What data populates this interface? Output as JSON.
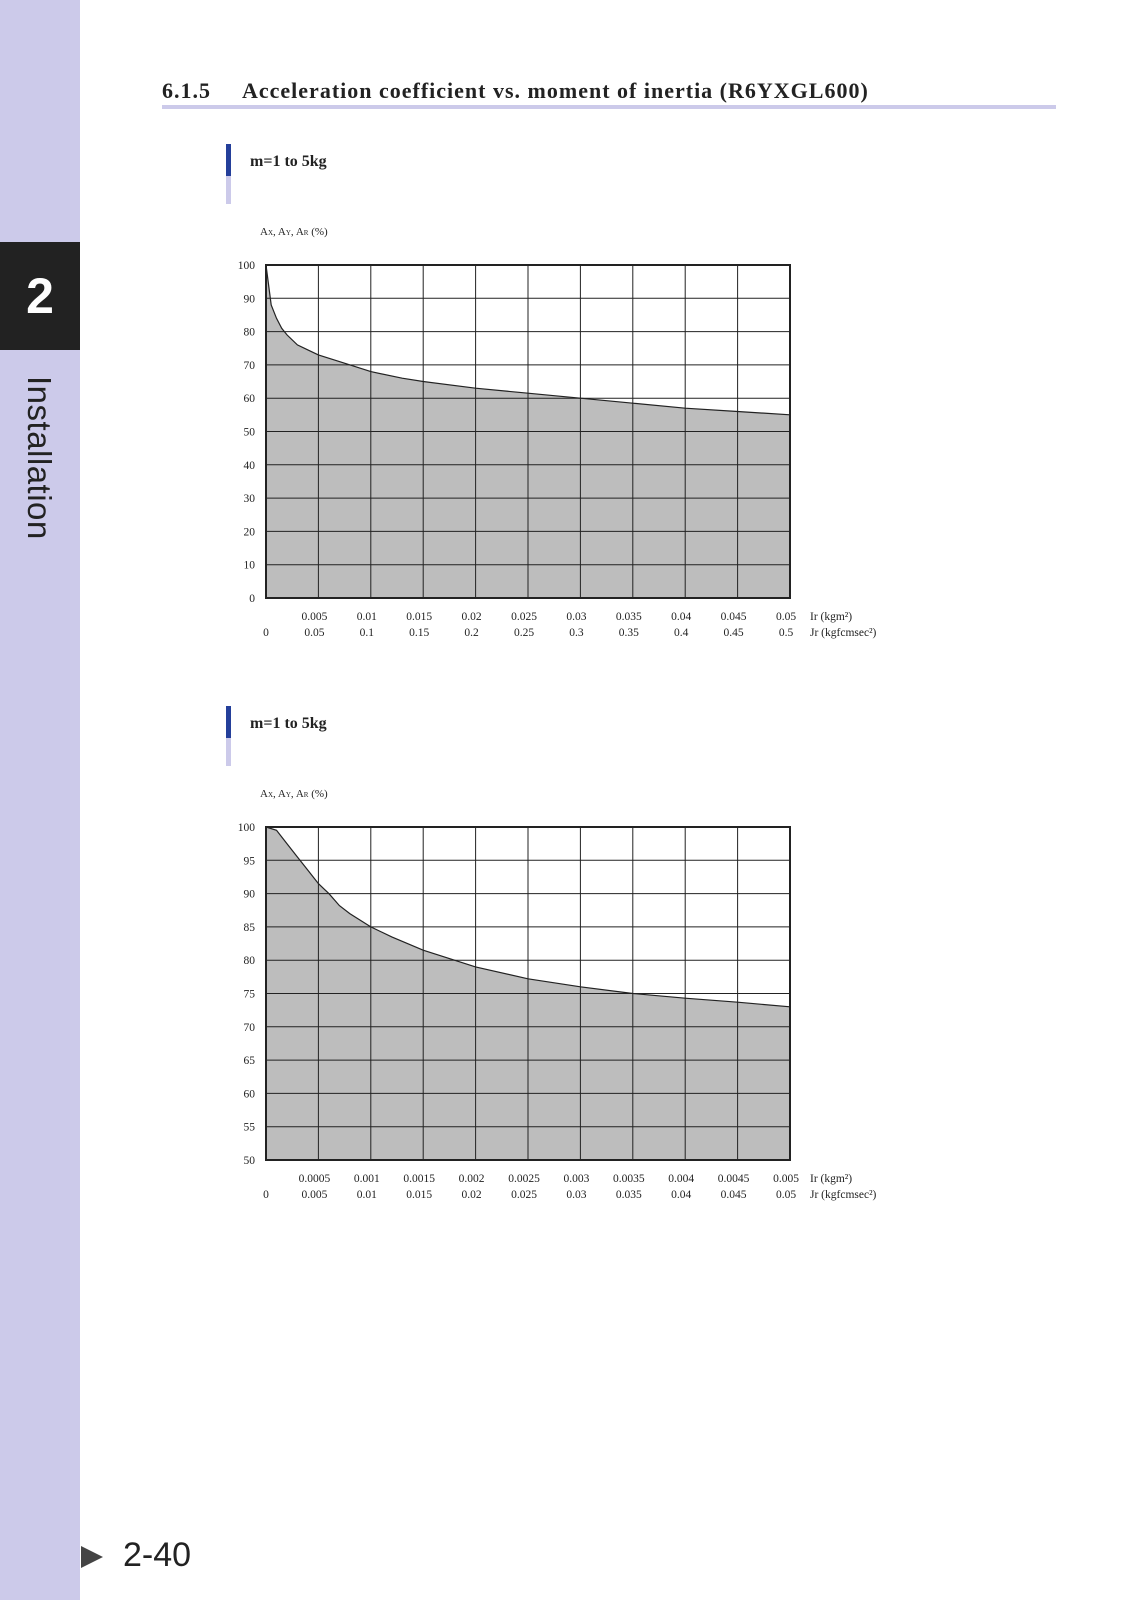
{
  "sidebar": {
    "chapter_number": "2",
    "chapter_name": "Installation"
  },
  "header": {
    "section_number": "6.1.5",
    "section_title": "Acceleration coefficient vs. moment of inertia (R6YXGL600)"
  },
  "footer": {
    "page_number": "2-40"
  },
  "colors": {
    "sidebar": "#cccaea",
    "chapter_box": "#222222",
    "accent_blue": "#243f9a",
    "fill_gray": "#bdbdbd"
  },
  "chart_data": [
    {
      "type": "area",
      "subtitle": "m=1 to 5kg",
      "ylabel_parts": [
        "A",
        "X",
        ", A",
        "Y",
        ", A",
        "R",
        " (%)"
      ],
      "ylim": [
        0,
        100
      ],
      "yticks": [
        "0",
        "10",
        "20",
        "30",
        "40",
        "50",
        "60",
        "70",
        "80",
        "90",
        "100"
      ],
      "x_ir_ticks": [
        "0.005",
        "0.01",
        "0.015",
        "0.02",
        "0.025",
        "0.03",
        "0.035",
        "0.04",
        "0.045",
        "0.05"
      ],
      "x_jr_ticks": [
        "0",
        "0.05",
        "0.1",
        "0.15",
        "0.2",
        "0.25",
        "0.3",
        "0.35",
        "0.4",
        "0.45",
        "0.5"
      ],
      "x_ir_unit": "Ir (kgm²)",
      "x_jr_unit": "Jr (kgfcmsec²)",
      "xlim": [
        0,
        0.05
      ],
      "grid": true,
      "x": [
        0,
        0.0005,
        0.001,
        0.0015,
        0.002,
        0.003,
        0.004,
        0.005,
        0.007,
        0.01,
        0.013,
        0.015,
        0.02,
        0.025,
        0.03,
        0.035,
        0.04,
        0.045,
        0.05
      ],
      "y": [
        100,
        88,
        84,
        81,
        79,
        76,
        74.5,
        73,
        71,
        68,
        66,
        65,
        63,
        61.5,
        60,
        58.5,
        57,
        56,
        55
      ]
    },
    {
      "type": "area",
      "subtitle": "m=1 to 5kg",
      "ylabel_parts": [
        "A",
        "X",
        ", A",
        "Y",
        ", A",
        "R",
        " (%)"
      ],
      "ylim": [
        50,
        100
      ],
      "yticks": [
        "50",
        "55",
        "60",
        "65",
        "70",
        "75",
        "80",
        "85",
        "90",
        "95",
        "100"
      ],
      "x_ir_ticks": [
        "0.0005",
        "0.001",
        "0.0015",
        "0.002",
        "0.0025",
        "0.003",
        "0.0035",
        "0.004",
        "0.0045",
        "0.005"
      ],
      "x_jr_ticks": [
        "0",
        "0.005",
        "0.01",
        "0.015",
        "0.02",
        "0.025",
        "0.03",
        "0.035",
        "0.04",
        "0.045",
        "0.05"
      ],
      "x_ir_unit": "Ir (kgm²)",
      "x_jr_unit": "Jr (kgfcmsec²)",
      "xlim": [
        0,
        0.005
      ],
      "grid": true,
      "x": [
        0,
        0.0001,
        0.0002,
        0.0003,
        0.0004,
        0.0005,
        0.0006,
        0.0007,
        0.0008,
        0.001,
        0.0012,
        0.0015,
        0.002,
        0.0025,
        0.003,
        0.0035,
        0.004,
        0.0045,
        0.005
      ],
      "y": [
        100,
        99.5,
        97.5,
        95.5,
        93.5,
        91.5,
        90,
        88.2,
        87,
        85,
        83.5,
        81.5,
        79,
        77.2,
        76,
        75,
        74.3,
        73.7,
        73
      ]
    }
  ]
}
